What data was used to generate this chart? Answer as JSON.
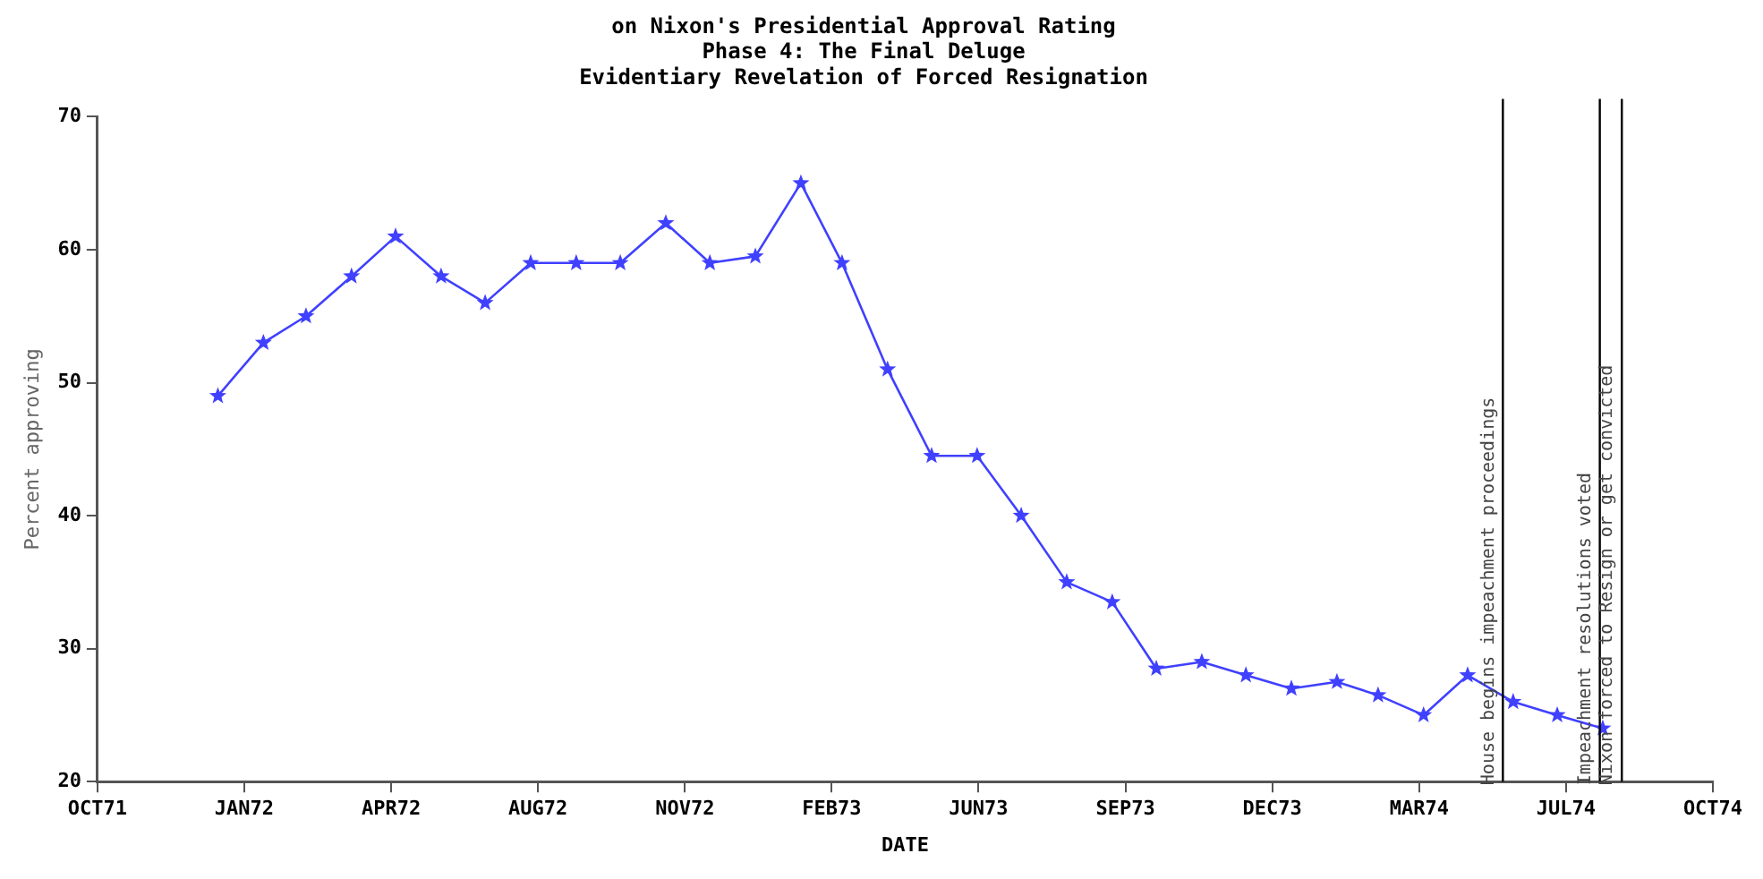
{
  "chart_data": {
    "type": "line",
    "title": "on Nixon's Presidential Approval Rating\nPhase 4: The Final Deluge\nEvidentiary Revelation of Forced Resignation",
    "xlabel": "DATE",
    "ylabel": "Percent approving",
    "x": [
      "1972-01",
      "1972-02",
      "1972-03",
      "1972-04",
      "1972-05",
      "1972-06",
      "1972-07",
      "1972-08",
      "1972-09",
      "1972-10",
      "1972-11",
      "1972-12",
      "1973-01",
      "1973-02",
      "1973-03",
      "1973-04",
      "1973-05",
      "1973-06",
      "1973-07",
      "1973-08",
      "1973-09",
      "1973-10",
      "1973-11",
      "1973-12",
      "1974-01",
      "1974-02",
      "1974-03",
      "1974-04",
      "1974-05",
      "1974-06",
      "1974-07",
      "1974-08"
    ],
    "series": [
      {
        "color": "#4040ff",
        "values": [
          49,
          53,
          55,
          58,
          61,
          58,
          56,
          59,
          59,
          59,
          62,
          59,
          59.5,
          65,
          59,
          51,
          44.5,
          44.5,
          40,
          35,
          33.5,
          28.5,
          29,
          28,
          27,
          27.5,
          26.5,
          25,
          28,
          26,
          25,
          24
        ]
      }
    ],
    "xlim": [
      "1971-10-11",
      "1974-10-15"
    ],
    "xticks": [
      {
        "value": "1971-10-11",
        "label": "OCT71"
      },
      {
        "value": "1972-01-19",
        "label": "JAN72"
      },
      {
        "value": "1972-04-28",
        "label": "APR72"
      },
      {
        "value": "1972-08-06",
        "label": "AUG72"
      },
      {
        "value": "1972-11-14",
        "label": "NOV72"
      },
      {
        "value": "1973-02-22",
        "label": "FEB73"
      },
      {
        "value": "1973-06-02",
        "label": "JUN73"
      },
      {
        "value": "1973-09-10",
        "label": "SEP73"
      },
      {
        "value": "1973-12-19",
        "label": "DEC73"
      },
      {
        "value": "1974-03-29",
        "label": "MAR74"
      },
      {
        "value": "1974-07-07",
        "label": "JUL74"
      },
      {
        "value": "1974-10-15",
        "label": "OCT74"
      }
    ],
    "ylim": [
      20,
      70
    ],
    "yticks": [
      20,
      30,
      40,
      50,
      60,
      70
    ],
    "ref_lines": [
      {
        "axis": "x",
        "value": "1974-05-25",
        "label": "House begins impeachment proceedings",
        "color": "#000000"
      },
      {
        "axis": "x",
        "value": "1974-07-30",
        "label": "Impeachment resolutions voted",
        "color": "#000000"
      },
      {
        "axis": "x",
        "value": "1974-08-14",
        "label": "Nixon forced to Resign or get convicted",
        "color": "#000000"
      }
    ],
    "marker": "star",
    "line_style": "solid",
    "grid": false,
    "legend": false
  }
}
